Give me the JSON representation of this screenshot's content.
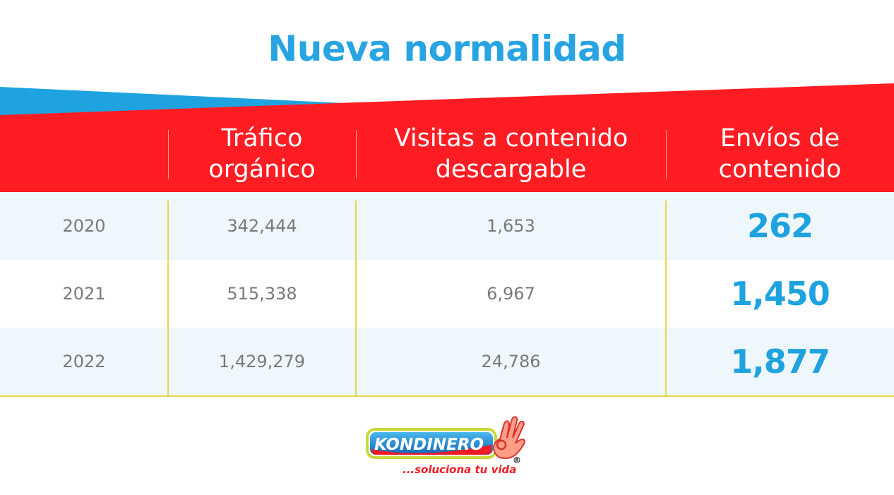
{
  "title": "Nueva normalidad",
  "colors": {
    "title": "#27a4e1",
    "header_bg": "#ff1c23",
    "accent_blue": "#1fa3e0",
    "row_tint": "#eef7fb",
    "grid_lines": "#e8d64c"
  },
  "table": {
    "headers": [
      "",
      "Tráfico orgánico",
      "Visitas a contenido descargable",
      "Envíos de contenido"
    ],
    "header_lines": [
      [
        "Tráfico",
        "orgánico"
      ],
      [
        "Visitas a contenido",
        "descargable"
      ],
      [
        "Envíos de",
        "contenido"
      ]
    ],
    "rows": [
      {
        "year": "2020",
        "trafico": "342,444",
        "visitas": "1,653",
        "envios": "262"
      },
      {
        "year": "2021",
        "trafico": "515,338",
        "visitas": "6,967",
        "envios": "1,450"
      },
      {
        "year": "2022",
        "trafico": "1,429,279",
        "visitas": "24,786",
        "envios": "1,877"
      }
    ]
  },
  "logo": {
    "brand": "KONDINERO",
    "registered": "®",
    "tagline": "...soluciona tu vida"
  }
}
